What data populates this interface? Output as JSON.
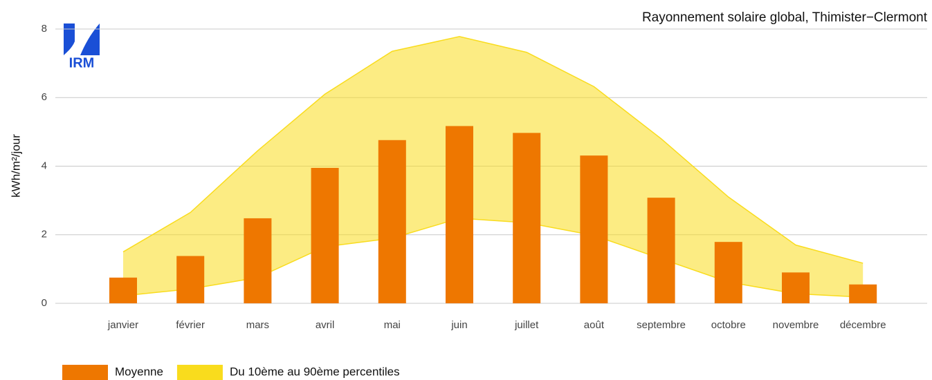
{
  "chart_data": {
    "type": "bar",
    "title": "Rayonnement solaire global, Thimister−Clermont",
    "y_label": "kWh/m²/jour",
    "logo_text": "IRM",
    "categories": [
      "janvier",
      "février",
      "mars",
      "avril",
      "mai",
      "juin",
      "juillet",
      "août",
      "septembre",
      "octobre",
      "novembre",
      "décembre"
    ],
    "series": [
      {
        "name": "Moyenne",
        "color": "#ee7700",
        "values": [
          0.75,
          1.38,
          2.48,
          3.95,
          4.76,
          5.17,
          4.97,
          4.31,
          3.08,
          1.79,
          0.9,
          0.55
        ]
      },
      {
        "name": "Du 10ème au 90ème percentiles",
        "color": "#f9dc1d",
        "low": [
          0.22,
          0.42,
          0.75,
          1.65,
          1.9,
          2.48,
          2.35,
          1.98,
          1.3,
          0.62,
          0.28,
          0.18
        ],
        "high": [
          1.5,
          2.65,
          4.45,
          6.1,
          7.35,
          7.78,
          7.32,
          6.32,
          4.8,
          3.1,
          1.7,
          1.17
        ]
      }
    ],
    "ylim": [
      0,
      8
    ],
    "yticks": [
      0,
      2,
      4,
      6,
      8
    ],
    "grid": true
  }
}
